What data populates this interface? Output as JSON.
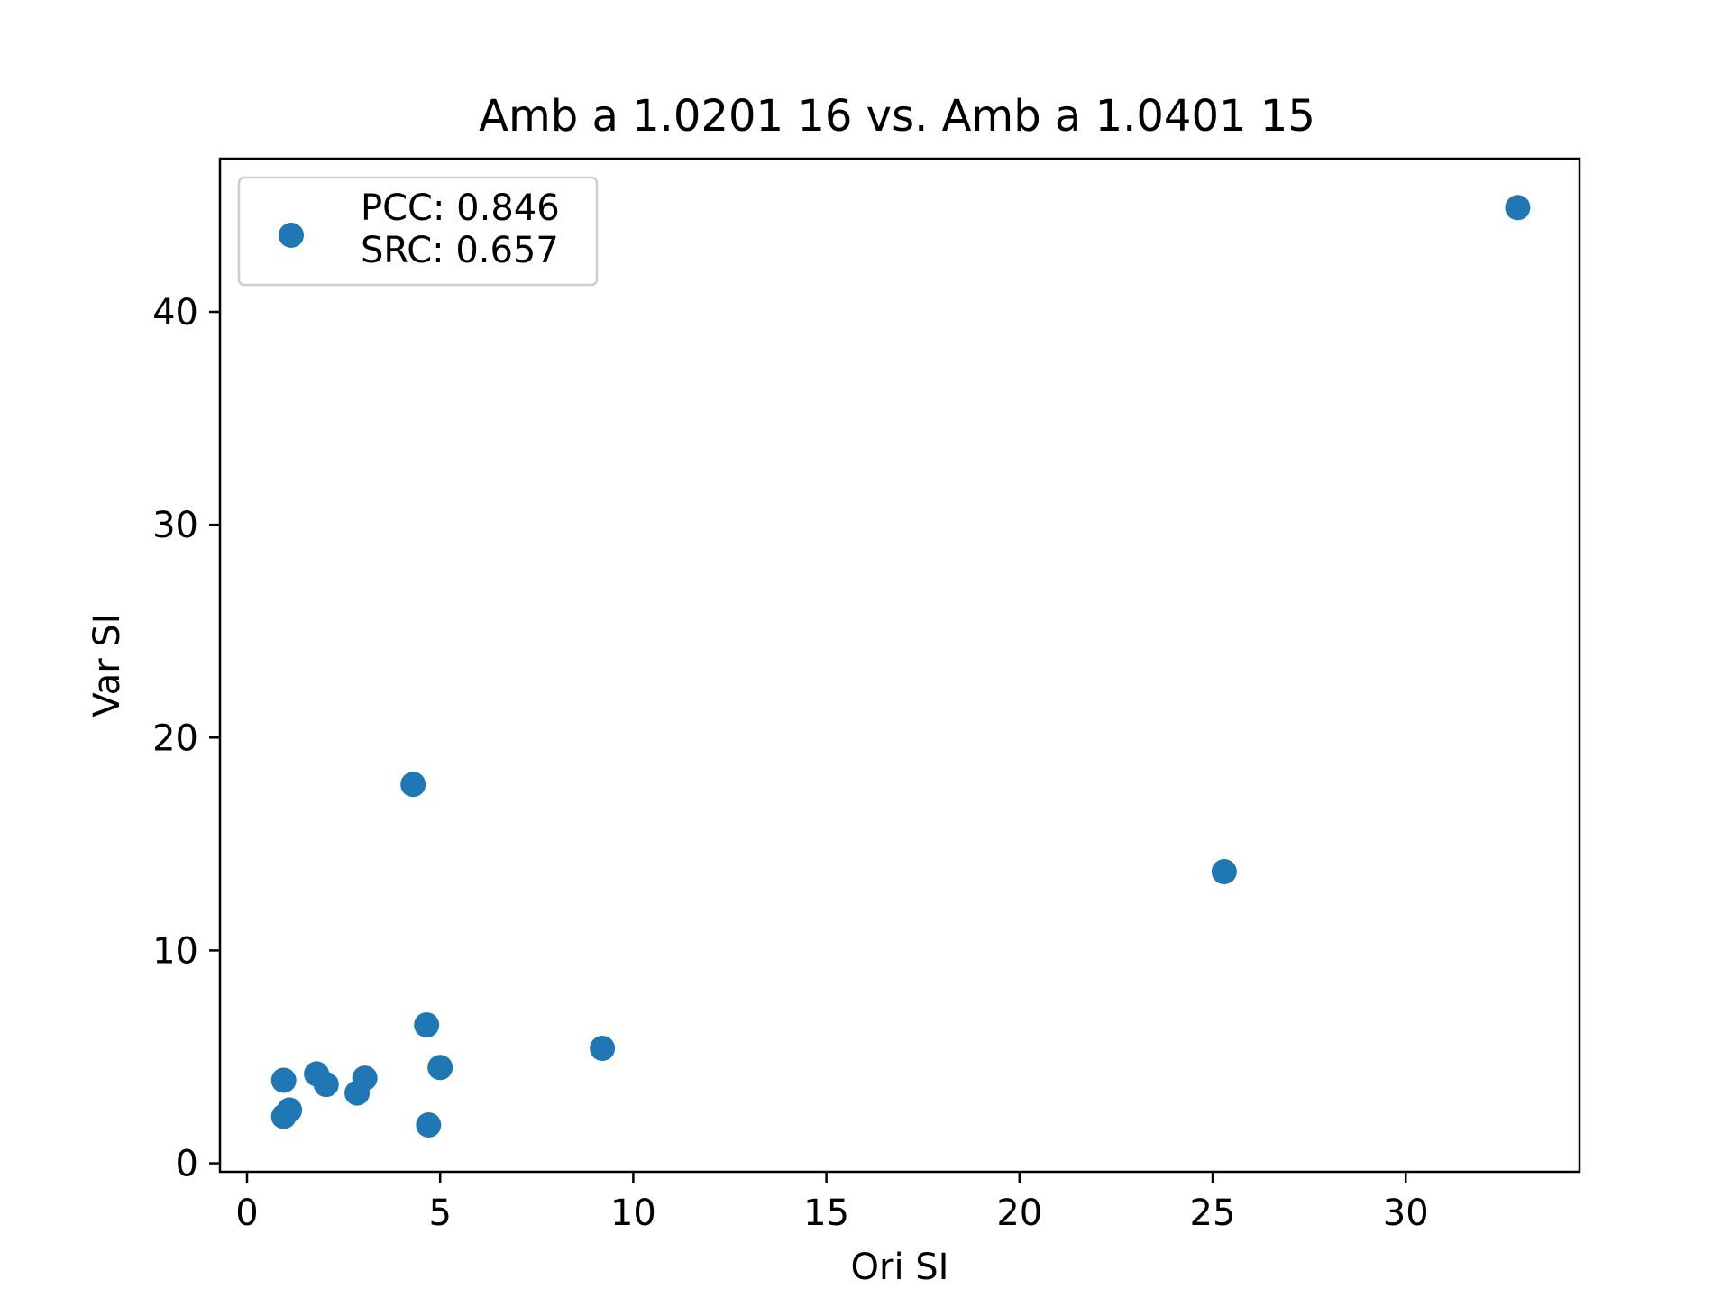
{
  "chart_data": {
    "type": "scatter",
    "title": "Amb a 1.0201 16 vs. Amb a 1.0401 15",
    "xlabel": "Ori SI",
    "ylabel": "Var SI",
    "xlim": [
      -0.7,
      34.5
    ],
    "ylim": [
      -0.4,
      47.2
    ],
    "xticks": [
      0,
      5,
      10,
      15,
      20,
      25,
      30
    ],
    "yticks": [
      0,
      10,
      20,
      30,
      40
    ],
    "grid": false,
    "legend_position": "upper-left",
    "legend_lines": [
      "PCC: 0.846",
      "SRC: 0.657"
    ],
    "marker_color": "#1f77b4",
    "series": [
      {
        "x": [
          32.9,
          25.3,
          4.3,
          4.65,
          9.2,
          5.0,
          3.05,
          0.95,
          1.8,
          2.05,
          2.85,
          1.1,
          0.95,
          4.7
        ],
        "y": [
          44.9,
          13.7,
          17.8,
          6.5,
          5.4,
          4.5,
          4.0,
          3.9,
          4.2,
          3.7,
          3.3,
          2.5,
          2.2,
          1.8
        ]
      }
    ]
  }
}
